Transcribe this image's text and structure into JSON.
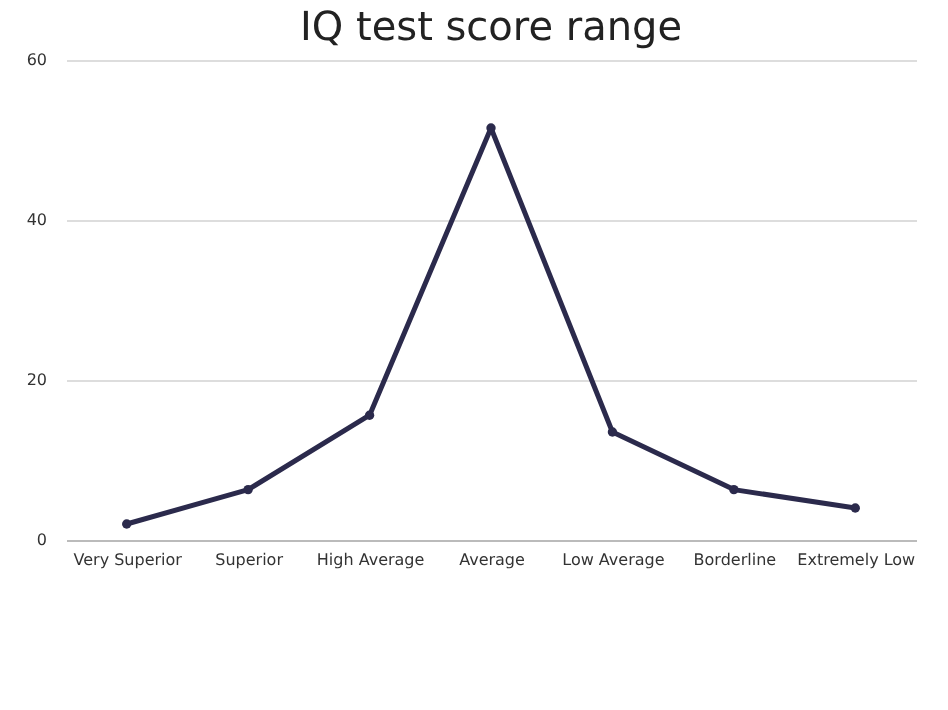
{
  "chart_data": {
    "type": "line",
    "title": "IQ test score range",
    "categories": [
      "Very Superior",
      "Superior",
      "High Average",
      "Average",
      "Low Average",
      "Borderline",
      "Extremely Low"
    ],
    "series": [
      {
        "color": "#2b2a4c",
        "values": [
          2.0,
          6.3,
          15.6,
          51.5,
          13.5,
          6.3,
          4.0
        ]
      }
    ],
    "ylim": [
      0,
      60
    ],
    "yticks": [
      0,
      20,
      40,
      60
    ],
    "grid": "y",
    "marker": "circle",
    "line_style": "solid"
  }
}
